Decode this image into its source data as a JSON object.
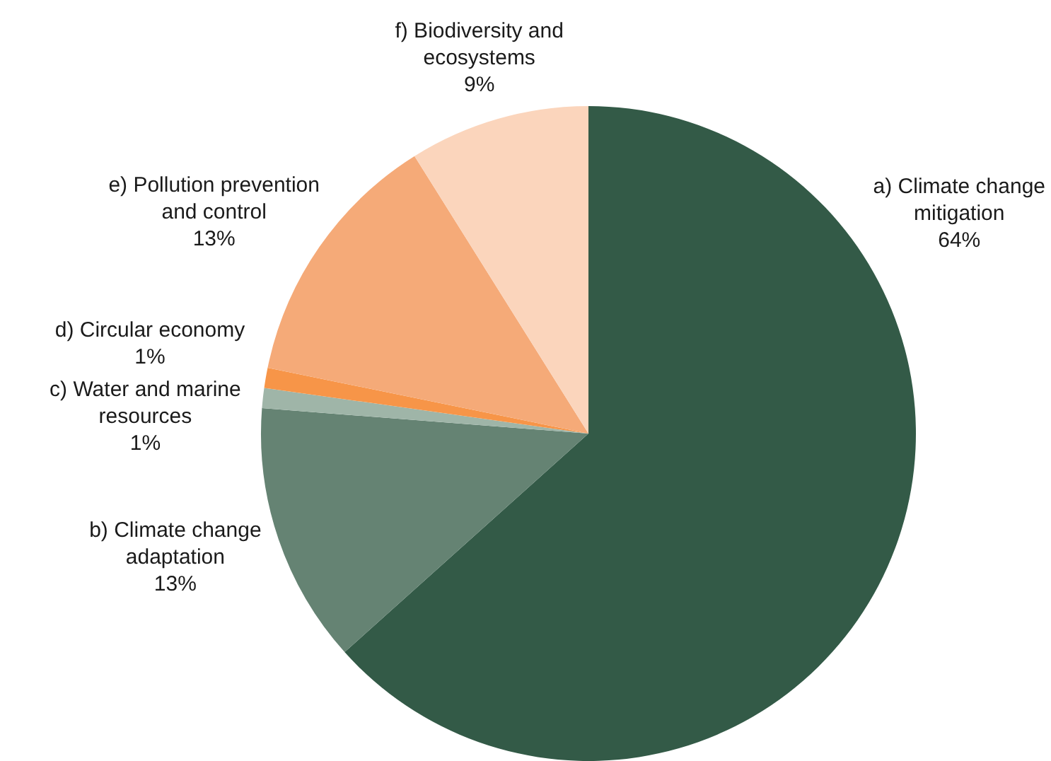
{
  "chart_data": {
    "type": "pie",
    "categories": [
      "a) Climate change mitigation",
      "b) Climate change adaptation",
      "c) Water and marine resources",
      "d) Circular economy",
      "e) Pollution prevention and control",
      "f) Biodiversity and ecosystems"
    ],
    "values": [
      64,
      13,
      1,
      1,
      13,
      9
    ],
    "colors": [
      "#335a47",
      "#658373",
      "#9fb5a8",
      "#f79548",
      "#f5aa78",
      "#fbd5bc"
    ],
    "value_labels": [
      "64%",
      "13%",
      "1%",
      "1%",
      "13%",
      "9%"
    ]
  }
}
